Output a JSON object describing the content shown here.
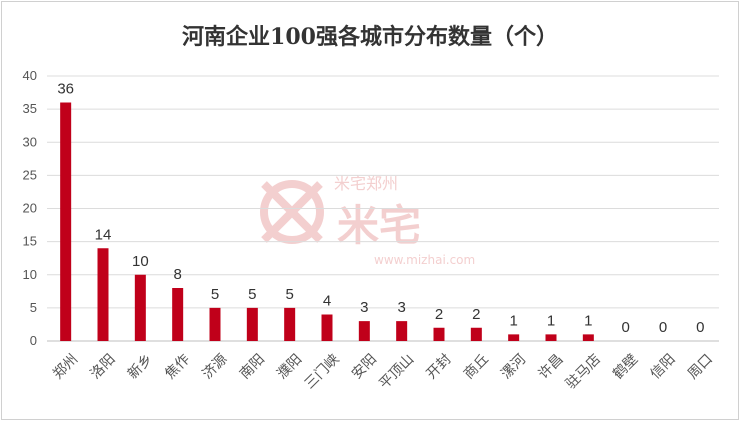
{
  "chart_data": {
    "type": "bar",
    "title": "河南企业100强各城市分布数量（个）",
    "categories": [
      "郑州",
      "洛阳",
      "新乡",
      "焦作",
      "济源",
      "南阳",
      "濮阳",
      "三门峡",
      "安阳",
      "平顶山",
      "开封",
      "商丘",
      "漯河",
      "许昌",
      "驻马店",
      "鹤壁",
      "信阳",
      "周口"
    ],
    "values": [
      36,
      14,
      10,
      8,
      5,
      5,
      5,
      4,
      3,
      3,
      2,
      2,
      1,
      1,
      1,
      0,
      0,
      0
    ],
    "yticks": [
      0,
      5,
      10,
      15,
      20,
      25,
      30,
      35,
      40
    ],
    "ylim": [
      0,
      40
    ],
    "grid": true,
    "legend": "none",
    "bar_color": "#c0001a",
    "data_labels": true
  },
  "watermark": {
    "brand": "米宅郑州",
    "logo": "米宅",
    "url": "www.mizhai.com"
  }
}
